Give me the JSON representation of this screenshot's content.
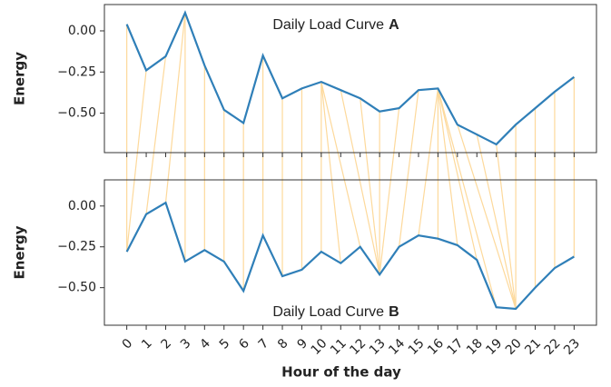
{
  "chart_data": [
    {
      "type": "line",
      "annotation": {
        "text": "Daily Load Curve",
        "bold": "A"
      },
      "y_label": "Energy",
      "x": [
        0,
        1,
        2,
        3,
        4,
        5,
        6,
        7,
        8,
        9,
        10,
        11,
        12,
        13,
        14,
        15,
        16,
        17,
        18,
        19,
        20,
        21,
        22,
        23
      ],
      "series": [
        {
          "color": "#2f7fb8",
          "values": [
            0.04,
            -0.24,
            -0.155,
            0.11,
            -0.21,
            -0.48,
            -0.56,
            -0.15,
            -0.41,
            -0.35,
            -0.31,
            -0.36,
            -0.41,
            -0.49,
            -0.47,
            -0.36,
            -0.35,
            -0.57,
            -0.63,
            -0.69,
            -0.57,
            -0.47,
            -0.37,
            -0.28
          ]
        }
      ],
      "xlim": [
        -1.15,
        24.15
      ],
      "ylim": [
        -0.74,
        0.16
      ],
      "yticks": [
        {
          "value": 0,
          "label": "0.00"
        },
        {
          "value": -0.25,
          "label": "−0.25"
        },
        {
          "value": -0.5,
          "label": "−0.50"
        }
      ]
    },
    {
      "type": "line",
      "annotation": {
        "text": "Daily Load Curve",
        "bold": "B"
      },
      "y_label": "Energy",
      "x_label": "Hour of the day",
      "x": [
        0,
        1,
        2,
        3,
        4,
        5,
        6,
        7,
        8,
        9,
        10,
        11,
        12,
        13,
        14,
        15,
        16,
        17,
        18,
        19,
        20,
        21,
        22,
        23
      ],
      "xticks": [
        0,
        1,
        2,
        3,
        4,
        5,
        6,
        7,
        8,
        9,
        10,
        11,
        12,
        13,
        14,
        15,
        16,
        17,
        18,
        19,
        20,
        21,
        22,
        23
      ],
      "series": [
        {
          "color": "#2f7fb8",
          "values": [
            -0.28,
            -0.05,
            0.02,
            -0.34,
            -0.27,
            -0.34,
            -0.52,
            -0.18,
            -0.43,
            -0.39,
            -0.28,
            -0.35,
            -0.25,
            -0.42,
            -0.25,
            -0.18,
            -0.2,
            -0.24,
            -0.33,
            -0.62,
            -0.63,
            -0.5,
            -0.38,
            -0.31
          ]
        }
      ],
      "xlim": [
        -1.15,
        24.15
      ],
      "ylim": [
        -0.73,
        0.16
      ],
      "yticks": [
        {
          "value": 0,
          "label": "0.00"
        },
        {
          "value": -0.25,
          "label": "−0.25"
        },
        {
          "value": -0.5,
          "label": "−0.50"
        }
      ]
    }
  ],
  "alignment_color": "#fdd99b",
  "alignment": [
    [
      0,
      0
    ],
    [
      1,
      0
    ],
    [
      2,
      1
    ],
    [
      3,
      2
    ],
    [
      3,
      3
    ],
    [
      4,
      4
    ],
    [
      5,
      5
    ],
    [
      6,
      6
    ],
    [
      7,
      7
    ],
    [
      8,
      8
    ],
    [
      9,
      9
    ],
    [
      10,
      10
    ],
    [
      10,
      11
    ],
    [
      10,
      12
    ],
    [
      11,
      13
    ],
    [
      12,
      13
    ],
    [
      13,
      13
    ],
    [
      14,
      13
    ],
    [
      15,
      14
    ],
    [
      16,
      15
    ],
    [
      16,
      16
    ],
    [
      16,
      17
    ],
    [
      16,
      18
    ],
    [
      16,
      19
    ],
    [
      17,
      20
    ],
    [
      18,
      20
    ],
    [
      19,
      20
    ],
    [
      20,
      20
    ],
    [
      21,
      21
    ],
    [
      22,
      22
    ],
    [
      23,
      23
    ]
  ]
}
